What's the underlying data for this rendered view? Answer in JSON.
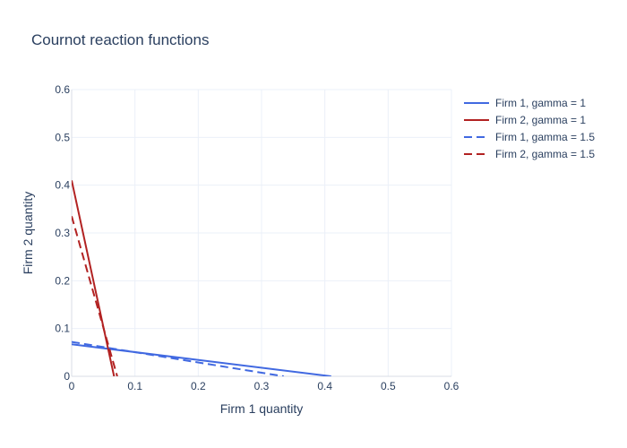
{
  "chart_data": {
    "type": "line",
    "title": "Cournot reaction functions",
    "xlabel": "Firm 1 quantity",
    "ylabel": "Firm 2 quantity",
    "xlim": [
      0,
      0.6
    ],
    "ylim": [
      0,
      0.6
    ],
    "xticks": [
      0,
      0.1,
      0.2,
      0.3,
      0.4,
      0.5,
      0.6
    ],
    "yticks": [
      0,
      0.1,
      0.2,
      0.3,
      0.4,
      0.5,
      0.6
    ],
    "xtick_labels": [
      "0",
      "0.1",
      "0.2",
      "0.3",
      "0.4",
      "0.5",
      "0.6"
    ],
    "ytick_labels": [
      "0",
      "0.1",
      "0.2",
      "0.3",
      "0.4",
      "0.5",
      "0.6"
    ],
    "grid": true,
    "legend_position": "top-right",
    "series": [
      {
        "name": "Firm 1, gamma = 1",
        "color": "#4169e1",
        "dash": "solid",
        "x": [
          0,
          0.41
        ],
        "y": [
          0.067,
          0
        ]
      },
      {
        "name": "Firm 2, gamma = 1",
        "color": "#b22222",
        "dash": "solid",
        "x": [
          0,
          0.067
        ],
        "y": [
          0.41,
          0
        ]
      },
      {
        "name": "Firm 1, gamma = 1.5",
        "color": "#4169e1",
        "dash": "dashed",
        "x": [
          0,
          0.335
        ],
        "y": [
          0.072,
          0
        ]
      },
      {
        "name": "Firm 2, gamma = 1.5",
        "color": "#b22222",
        "dash": "dashed",
        "x": [
          0,
          0.072
        ],
        "y": [
          0.335,
          0
        ]
      }
    ]
  }
}
